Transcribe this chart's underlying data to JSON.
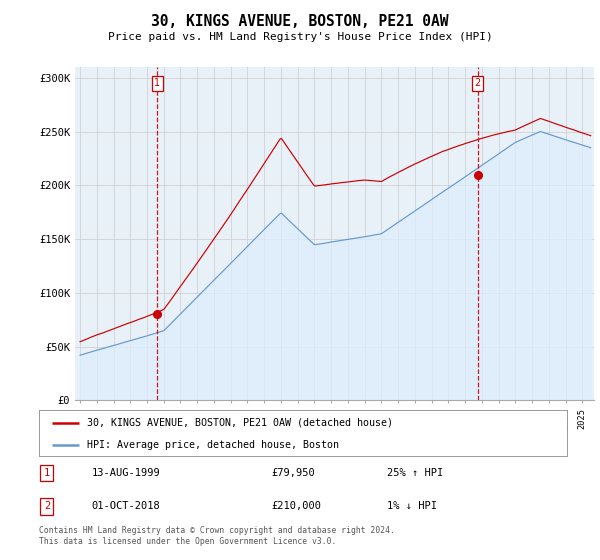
{
  "title": "30, KINGS AVENUE, BOSTON, PE21 0AW",
  "subtitle": "Price paid vs. HM Land Registry's House Price Index (HPI)",
  "red_label": "30, KINGS AVENUE, BOSTON, PE21 0AW (detached house)",
  "blue_label": "HPI: Average price, detached house, Boston",
  "point1_date": "13-AUG-1999",
  "point1_price": "£79,950",
  "point1_hpi": "25% ↑ HPI",
  "point2_date": "01-OCT-2018",
  "point2_price": "£210,000",
  "point2_hpi": "1% ↓ HPI",
  "footer": "Contains HM Land Registry data © Crown copyright and database right 2024.\nThis data is licensed under the Open Government Licence v3.0.",
  "red_color": "#cc0000",
  "blue_color": "#6699cc",
  "blue_fill_color": "#ddeeff",
  "grid_color": "#cccccc",
  "background_color": "#ffffff",
  "ylim": [
    0,
    310000
  ],
  "yticks": [
    0,
    50000,
    100000,
    150000,
    200000,
    250000,
    300000
  ],
  "ytick_labels": [
    "£0",
    "£50K",
    "£100K",
    "£150K",
    "£200K",
    "£250K",
    "£300K"
  ]
}
